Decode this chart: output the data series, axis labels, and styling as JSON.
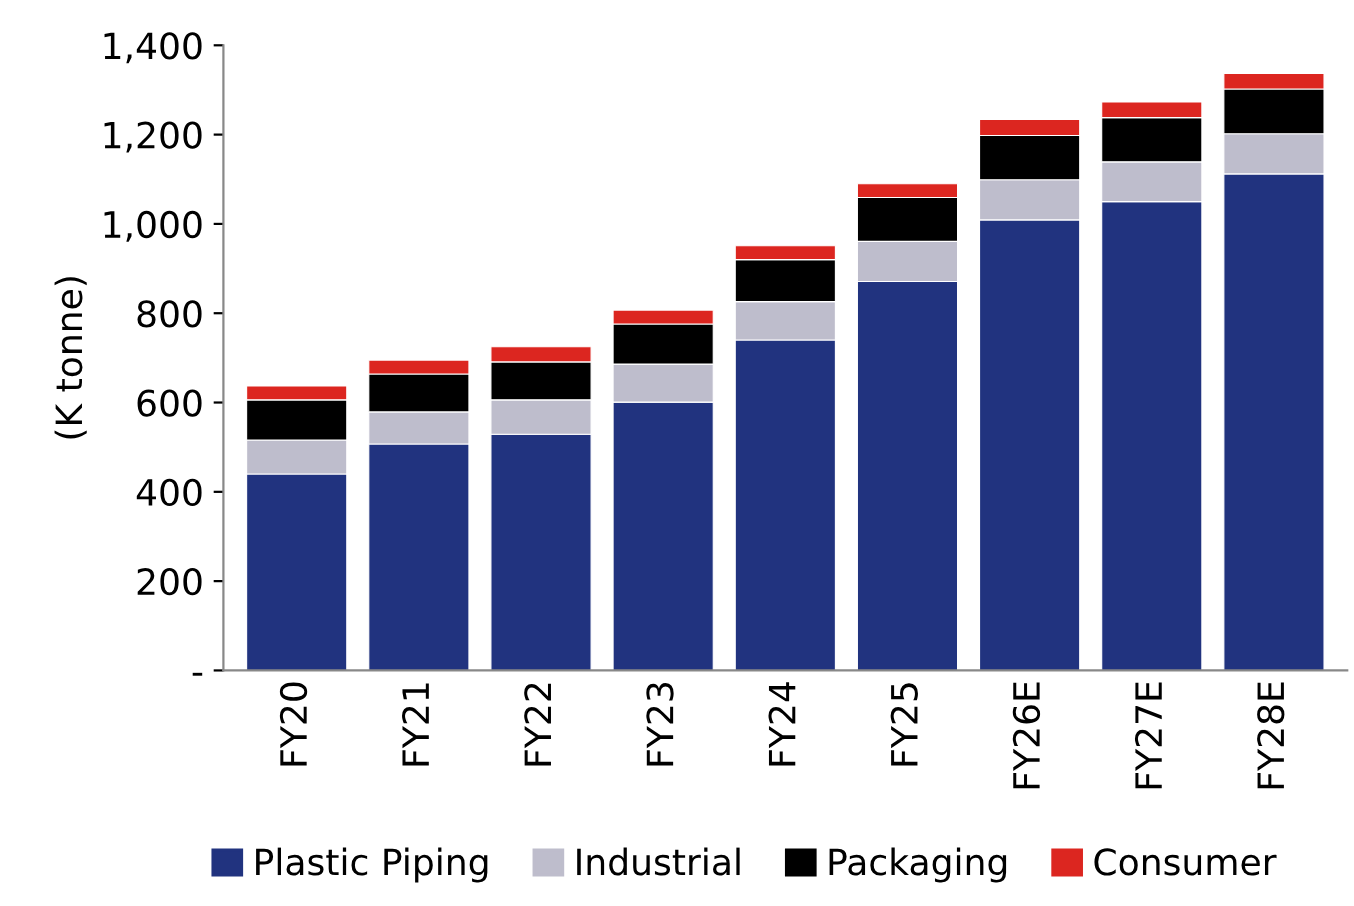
{
  "chart_data": {
    "type": "bar",
    "stacked": true,
    "ylabel": "(K tonne)",
    "categories": [
      "FY20",
      "FY21",
      "FY22",
      "FY23",
      "FY24",
      "FY25",
      "FY26E",
      "FY27E",
      "FY28E"
    ],
    "series": [
      {
        "name": "Plastic Piping",
        "color": "#21337f",
        "values": [
          440,
          507,
          529,
          601,
          740,
          871,
          1009,
          1050,
          1112
        ]
      },
      {
        "name": "Industrial",
        "color": "#bebdcc",
        "values": [
          76,
          72,
          77,
          85,
          86,
          90,
          90,
          89,
          90
        ]
      },
      {
        "name": "Packaging",
        "color": "#000000",
        "values": [
          90,
          85,
          85,
          90,
          94,
          98,
          99,
          99,
          100
        ]
      },
      {
        "name": "Consumer",
        "color": "#dc2620",
        "values": [
          31,
          31,
          34,
          31,
          31,
          31,
          36,
          35,
          35
        ]
      }
    ],
    "ylim": [
      0,
      1400
    ],
    "yticks": [
      {
        "value": 0,
        "label": "-"
      },
      {
        "value": 200,
        "label": "200"
      },
      {
        "value": 400,
        "label": "400"
      },
      {
        "value": 600,
        "label": "600"
      },
      {
        "value": 800,
        "label": "800"
      },
      {
        "value": 1000,
        "label": "1,000"
      },
      {
        "value": 1200,
        "label": "1,200"
      },
      {
        "value": 1400,
        "label": "1,400"
      }
    ],
    "grid": false,
    "legend": "bottom"
  }
}
